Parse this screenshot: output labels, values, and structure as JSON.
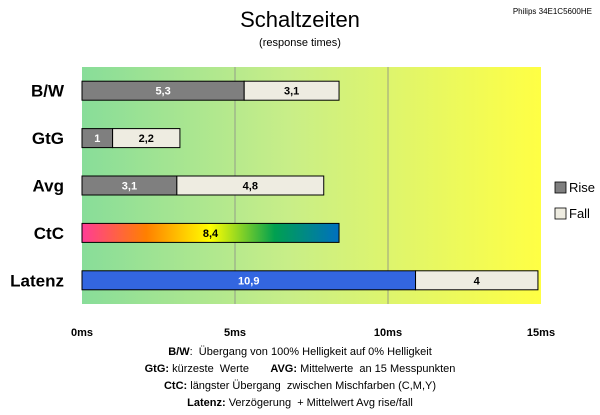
{
  "chart_data": {
    "type": "bar",
    "orientation": "horizontal",
    "stacked": true,
    "title": "Schaltzeiten",
    "subtitle": "(response times)",
    "model": "Philips 34E1C5600HE",
    "categories": [
      "B/W",
      "GtG",
      "Avg",
      "CtC",
      "Latenz"
    ],
    "series": [
      {
        "name": "Rise",
        "color": "#7f7f7f",
        "values": [
          5.3,
          1,
          3.1,
          8.4,
          10.9
        ],
        "labels": [
          "5,3",
          "1",
          "3,1",
          "8,4",
          "10,9"
        ]
      },
      {
        "name": "Fall",
        "color": "#eeece1",
        "values": [
          3.1,
          2.2,
          4.8,
          0,
          4
        ],
        "labels": [
          "3,1",
          "2,2",
          "4,8",
          "",
          "4"
        ]
      }
    ],
    "xlim": [
      0,
      15
    ],
    "xticks": [
      {
        "value": 0,
        "label": "0ms"
      },
      {
        "value": 5,
        "label": "5ms"
      },
      {
        "value": 10,
        "label": "10ms"
      },
      {
        "value": 15,
        "label": "15ms"
      }
    ],
    "grid": true,
    "legend": {
      "position": "right"
    },
    "colors": {
      "ctc_gradient": [
        "#ff3c96",
        "#ff8000",
        "#ffff00",
        "#00a050",
        "#0070c0"
      ],
      "latenz_rise": "#3366e0",
      "background_gradient": [
        "#88dd99",
        "#ffff44"
      ]
    },
    "footnotes": [
      {
        "parts": [
          {
            "bold": "B/W"
          },
          {
            "text": ":  Übergang von 100% Helligkeit auf 0% Helligkeit"
          }
        ]
      },
      {
        "parts": [
          {
            "bold": "GtG:"
          },
          {
            "text": " kürzeste  Werte       "
          },
          {
            "bold": "AVG:"
          },
          {
            "text": " Mittelwerte  an 15 Messpunkten"
          }
        ]
      },
      {
        "parts": [
          {
            "bold": "CtC:"
          },
          {
            "text": " längster Übergang  zwischen Mischfarben (C,M,Y)"
          }
        ]
      },
      {
        "parts": [
          {
            "bold": "Latenz:"
          },
          {
            "text": " Verzögerung  + Mittelwert Avg rise/fall"
          }
        ]
      }
    ]
  }
}
